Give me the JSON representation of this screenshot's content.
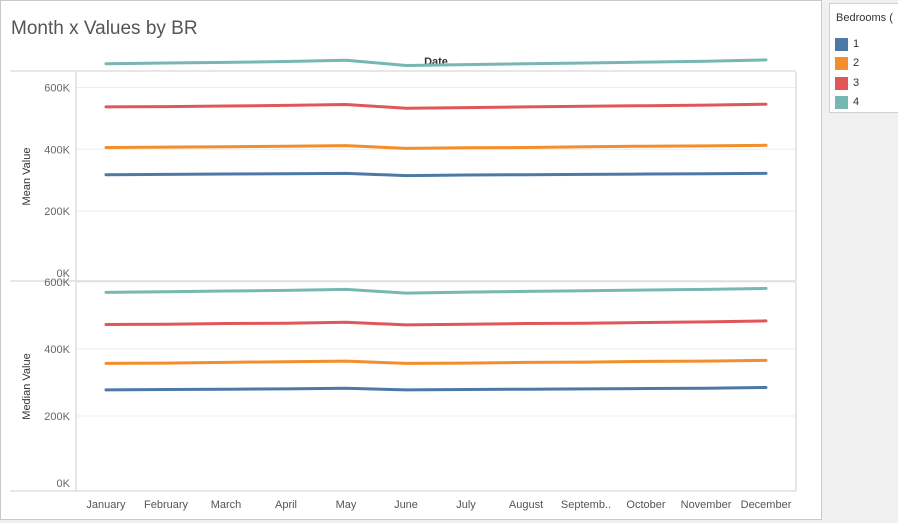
{
  "title": "Month x Values by BR",
  "legend": {
    "title": "Bedrooms (",
    "items": [
      {
        "label": "1",
        "color": "#4e79a7"
      },
      {
        "label": "2",
        "color": "#f28e2b"
      },
      {
        "label": "3",
        "color": "#e15759"
      },
      {
        "label": "4",
        "color": "#76b7b2"
      }
    ]
  },
  "chart_data": {
    "type": "line",
    "header": "Date",
    "categories": [
      "January",
      "February",
      "March",
      "April",
      "May",
      "June",
      "July",
      "August",
      "Septemb..",
      "October",
      "November",
      "December"
    ],
    "legend_position": "right",
    "grid": true,
    "panels": [
      {
        "ylabel": "Mean Value",
        "ylim": [
          0,
          650000
        ],
        "yticks": [
          {
            "v": 0,
            "label": "0K"
          },
          {
            "v": 200000,
            "label": "200K"
          },
          {
            "v": 400000,
            "label": "400K"
          },
          {
            "v": 600000,
            "label": "600K"
          }
        ],
        "series": [
          {
            "name": "1",
            "values": [
              318000,
              319000,
              320000,
              321000,
              322000,
              315000,
              317000,
              318000,
              319000,
              320000,
              321000,
              322000
            ]
          },
          {
            "name": "2",
            "values": [
              406000,
              407000,
              408000,
              410000,
              412000,
              403000,
              405000,
              406000,
              408000,
              410000,
              411000,
              413000
            ]
          },
          {
            "name": "3",
            "values": [
              537000,
              538000,
              540000,
              542000,
              545000,
              533000,
              535000,
              537000,
              539000,
              541000,
              543000,
              546000
            ]
          },
          {
            "name": "4",
            "values": [
              677000,
              679000,
              681000,
              684000,
              688000,
              671000,
              674000,
              677000,
              679000,
              682000,
              685000,
              689000
            ]
          }
        ]
      },
      {
        "ylabel": "Median Value",
        "ylim": [
          0,
          600000
        ],
        "yticks": [
          {
            "v": 0,
            "label": "0K"
          },
          {
            "v": 200000,
            "label": "200K"
          },
          {
            "v": 400000,
            "label": "400K"
          },
          {
            "v": 600000,
            "label": "600K"
          }
        ],
        "series": [
          {
            "name": "1",
            "values": [
              278000,
              279000,
              280000,
              281000,
              283000,
              278000,
              279000,
              280000,
              281000,
              282000,
              283000,
              285000
            ]
          },
          {
            "name": "2",
            "values": [
              357000,
              358000,
              360000,
              362000,
              364000,
              357000,
              358000,
              360000,
              361000,
              363000,
              364000,
              366000
            ]
          },
          {
            "name": "3",
            "values": [
              473000,
              474000,
              476000,
              477000,
              480000,
              472000,
              474000,
              476000,
              477000,
              479000,
              481000,
              484000
            ]
          },
          {
            "name": "4",
            "values": [
              569000,
              571000,
              573000,
              575000,
              578000,
              567000,
              570000,
              572000,
              574000,
              576000,
              578000,
              581000
            ]
          }
        ]
      }
    ]
  }
}
